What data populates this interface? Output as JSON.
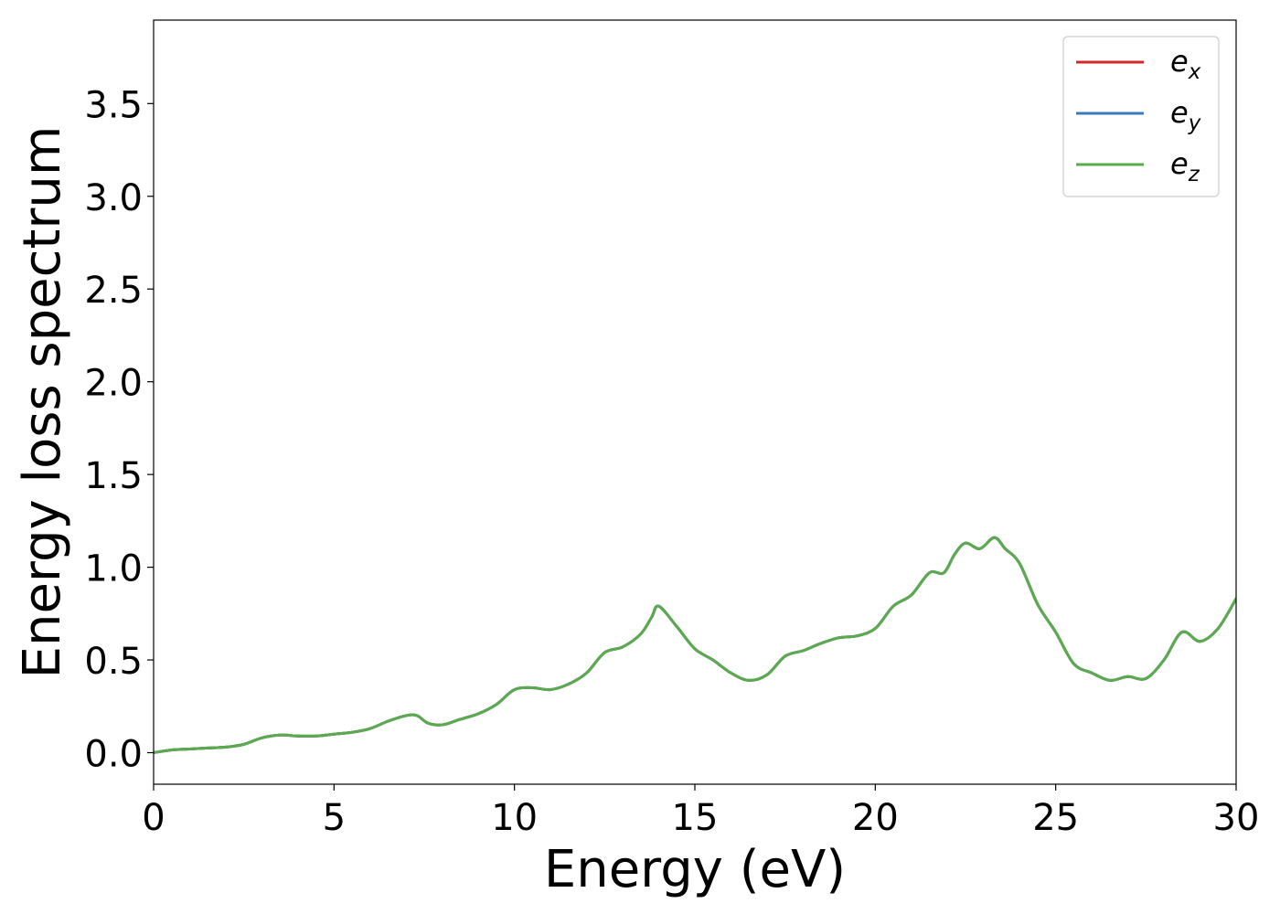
{
  "chart_data": {
    "type": "line",
    "title": "",
    "xlabel": "Energy (eV)",
    "ylabel": "Energy loss spectrum",
    "xlim": [
      0,
      30
    ],
    "ylim": [
      -0.17,
      3.95
    ],
    "xticks": [
      0,
      5,
      10,
      15,
      20,
      25,
      30
    ],
    "xtick_labels": [
      "0",
      "5",
      "10",
      "15",
      "20",
      "25",
      "30"
    ],
    "yticks": [
      0.0,
      0.5,
      1.0,
      1.5,
      2.0,
      2.5,
      3.0,
      3.5
    ],
    "ytick_labels": [
      "0.0",
      "0.5",
      "1.0",
      "1.5",
      "2.0",
      "2.5",
      "3.0",
      "3.5"
    ],
    "grid": false,
    "legend_position": "top-right",
    "x": [
      0,
      0.5,
      1.0,
      1.5,
      2.0,
      2.5,
      3.0,
      3.5,
      4.0,
      4.5,
      5.0,
      5.5,
      6.0,
      6.5,
      7.0,
      7.3,
      7.6,
      8.0,
      8.5,
      9.0,
      9.5,
      10.0,
      10.5,
      11.0,
      11.5,
      12.0,
      12.5,
      13.0,
      13.5,
      13.8,
      14.0,
      14.5,
      15.0,
      15.5,
      16.0,
      16.5,
      17.0,
      17.5,
      18.0,
      18.5,
      19.0,
      19.5,
      20.0,
      20.5,
      21.0,
      21.5,
      21.9,
      22.2,
      22.5,
      22.9,
      23.3,
      23.6,
      24.0,
      24.5,
      25.0,
      25.5,
      26.0,
      26.5,
      27.0,
      27.5,
      28.0,
      28.5,
      29.0,
      29.5,
      30.0
    ],
    "series": [
      {
        "name": "e_x",
        "legend_main": "e",
        "legend_sub": "x",
        "color": "#d62728",
        "values": [
          0.0,
          0.015,
          0.02,
          0.025,
          0.03,
          0.045,
          0.08,
          0.095,
          0.09,
          0.09,
          0.1,
          0.11,
          0.13,
          0.17,
          0.2,
          0.2,
          0.16,
          0.15,
          0.18,
          0.21,
          0.26,
          0.34,
          0.35,
          0.34,
          0.37,
          0.43,
          0.54,
          0.57,
          0.64,
          0.73,
          0.79,
          0.68,
          0.56,
          0.5,
          0.43,
          0.39,
          0.42,
          0.52,
          0.55,
          0.59,
          0.62,
          0.63,
          0.67,
          0.79,
          0.85,
          0.97,
          0.97,
          1.07,
          1.13,
          1.1,
          1.16,
          1.1,
          1.02,
          0.8,
          0.65,
          0.48,
          0.43,
          0.39,
          0.41,
          0.4,
          0.5,
          0.65,
          0.6,
          0.67,
          0.83
        ]
      },
      {
        "name": "e_y",
        "legend_main": "e",
        "legend_sub": "y",
        "color": "#3a7bbf",
        "values": [
          0.0,
          0.015,
          0.02,
          0.025,
          0.03,
          0.045,
          0.08,
          0.095,
          0.09,
          0.09,
          0.1,
          0.11,
          0.13,
          0.17,
          0.2,
          0.2,
          0.16,
          0.15,
          0.18,
          0.21,
          0.26,
          0.34,
          0.35,
          0.34,
          0.37,
          0.43,
          0.54,
          0.57,
          0.64,
          0.73,
          0.79,
          0.68,
          0.56,
          0.5,
          0.43,
          0.39,
          0.42,
          0.52,
          0.55,
          0.59,
          0.62,
          0.63,
          0.67,
          0.79,
          0.85,
          0.97,
          0.97,
          1.07,
          1.13,
          1.1,
          1.16,
          1.1,
          1.02,
          0.8,
          0.65,
          0.48,
          0.43,
          0.39,
          0.41,
          0.4,
          0.5,
          0.65,
          0.6,
          0.67,
          0.83
        ]
      },
      {
        "name": "e_z",
        "legend_main": "e",
        "legend_sub": "z",
        "color": "#5aab4e",
        "values": [
          0.0,
          0.015,
          0.02,
          0.025,
          0.03,
          0.045,
          0.08,
          0.095,
          0.09,
          0.09,
          0.1,
          0.11,
          0.13,
          0.17,
          0.2,
          0.2,
          0.16,
          0.15,
          0.18,
          0.21,
          0.26,
          0.34,
          0.35,
          0.34,
          0.37,
          0.43,
          0.54,
          0.57,
          0.64,
          0.73,
          0.79,
          0.68,
          0.56,
          0.5,
          0.43,
          0.39,
          0.42,
          0.52,
          0.55,
          0.59,
          0.62,
          0.63,
          0.67,
          0.79,
          0.85,
          0.97,
          0.97,
          1.07,
          1.13,
          1.1,
          1.16,
          1.1,
          1.02,
          0.8,
          0.65,
          0.48,
          0.43,
          0.39,
          0.41,
          0.4,
          0.5,
          0.65,
          0.6,
          0.67,
          0.83
        ]
      }
    ]
  }
}
